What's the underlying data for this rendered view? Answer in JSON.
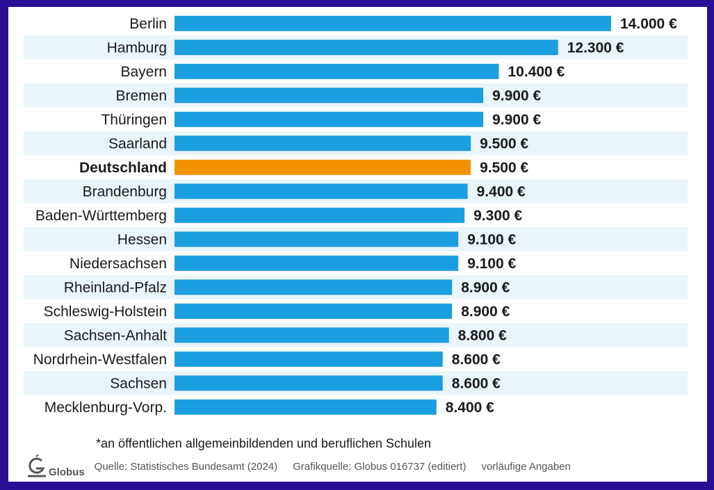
{
  "chart_data": {
    "type": "bar",
    "orientation": "horizontal",
    "categories": [
      "Berlin",
      "Hamburg",
      "Bayern",
      "Bremen",
      "Thüringen",
      "Saarland",
      "Deutschland",
      "Brandenburg",
      "Baden-Württemberg",
      "Hessen",
      "Niedersachsen",
      "Rheinland-Pfalz",
      "Schleswig-Holstein",
      "Sachsen-Anhalt",
      "Nordrhein-Westfalen",
      "Sachsen",
      "Mecklenburg-Vorp."
    ],
    "values": [
      14000,
      12300,
      10400,
      9900,
      9900,
      9500,
      9500,
      9400,
      9300,
      9100,
      9100,
      8900,
      8900,
      8800,
      8600,
      8600,
      8400
    ],
    "value_labels": [
      "14.000 €",
      "12.300 €",
      "10.400 €",
      "9.900 €",
      "9.900 €",
      "9.500 €",
      "9.500 €",
      "9.400 €",
      "9.300 €",
      "9.100 €",
      "9.100 €",
      "8.900 €",
      "8.900 €",
      "8.800 €",
      "8.600 €",
      "8.600 €",
      "8.400 €"
    ],
    "highlight": "Deutschland",
    "bar_color": "#1a9ee0",
    "highlight_color": "#f39200",
    "stripe_color": "#eaf4fb",
    "xlim": [
      0,
      14000
    ]
  },
  "footnote": "*an öffentlichen allgemeinbildenden und beruflichen Schulen",
  "footer": {
    "logo_text": "Globus",
    "source": "Quelle: Statistisches Bundesamt (2024)",
    "grafikquelle": "Grafikquelle: Globus 016737 (editiert)",
    "note": "vorläufige Angaben"
  }
}
